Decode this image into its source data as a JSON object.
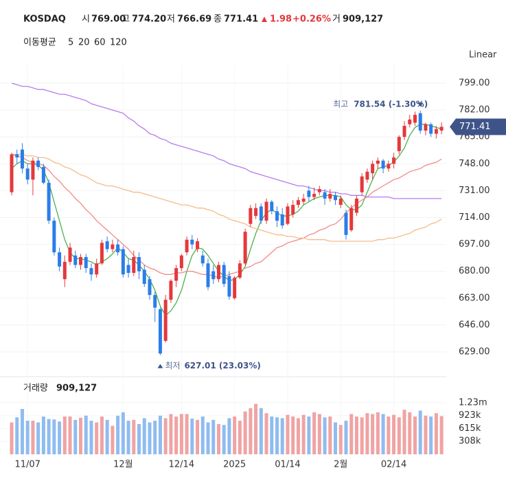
{
  "chart_data": {
    "type": "candlestick",
    "header": {
      "title": "KOSDAQ",
      "open_label": "시",
      "open": "769.00",
      "high_label": "고",
      "high": "774.20",
      "low_label": "저",
      "low": "766.69",
      "close_label": "종",
      "close": "771.41",
      "change": "1.98",
      "change_pct": "+0.26%",
      "volume_label": "거",
      "volume": "909,127"
    },
    "ma_title": "이동평균",
    "scale": "Linear",
    "categories": [
      null,
      null,
      null,
      "11/07",
      null,
      null,
      null,
      null,
      null,
      null,
      null,
      null,
      null,
      null,
      null,
      null,
      null,
      null,
      null,
      null,
      null,
      "12월",
      null,
      null,
      null,
      null,
      null,
      null,
      null,
      null,
      null,
      null,
      "12/14",
      null,
      null,
      null,
      null,
      null,
      null,
      null,
      null,
      null,
      "2025",
      null,
      null,
      null,
      null,
      null,
      null,
      null,
      null,
      null,
      "01/14",
      null,
      null,
      null,
      null,
      null,
      null,
      null,
      null,
      null,
      "2월",
      null,
      null,
      null,
      null,
      null,
      null,
      null,
      null,
      null,
      "02/14",
      null,
      null,
      null,
      null,
      null,
      null,
      null,
      null,
      null
    ],
    "open": [
      730,
      754,
      757,
      745,
      738,
      750,
      746,
      736,
      712,
      692,
      675,
      686,
      690,
      684,
      689,
      682,
      678,
      685,
      699,
      694,
      697,
      694,
      684,
      679,
      689,
      681,
      675,
      665,
      656,
      636,
      662,
      674,
      682,
      692,
      700,
      694,
      690,
      685,
      680,
      675,
      684,
      677,
      663,
      676,
      685,
      710,
      715,
      721,
      712,
      724,
      718,
      716,
      710,
      716,
      722,
      724,
      731,
      727,
      730,
      730,
      726,
      728,
      722,
      717,
      706,
      717,
      730,
      738,
      742,
      748,
      750,
      745,
      748,
      756,
      765,
      773,
      774,
      780,
      769,
      773,
      767,
      769
    ],
    "high": [
      755,
      757,
      761,
      748,
      752,
      752,
      748,
      738,
      714,
      695,
      690,
      698,
      693,
      691,
      691,
      685,
      688,
      700,
      702,
      700,
      700,
      696,
      688,
      693,
      692,
      684,
      677,
      667,
      657,
      665,
      675,
      684,
      691,
      702,
      703,
      701,
      693,
      688,
      684,
      686,
      686,
      680,
      677,
      687,
      707,
      722,
      723,
      723,
      726,
      725,
      721,
      720,
      723,
      725,
      727,
      729,
      734,
      733,
      734,
      732,
      732,
      730,
      728,
      719,
      722,
      728,
      742,
      745,
      750,
      752,
      751,
      750,
      755,
      766,
      775,
      779,
      781,
      781.54,
      774,
      774,
      772,
      774.2
    ],
    "low": [
      728,
      748,
      742,
      735,
      728,
      744,
      735,
      710,
      690,
      680,
      670,
      684,
      682,
      681,
      679,
      674,
      676,
      684,
      692,
      692,
      690,
      676,
      676,
      677,
      675,
      670,
      662,
      648,
      627.01,
      635,
      660,
      670,
      680,
      690,
      694,
      692,
      683,
      668,
      672,
      673,
      670,
      662,
      662,
      675,
      684,
      708,
      713,
      710,
      710,
      716,
      708,
      707,
      709,
      714,
      720,
      722,
      724,
      725,
      728,
      722,
      724,
      722,
      720,
      700,
      705,
      715,
      728,
      736,
      738,
      745,
      742,
      743,
      745,
      754,
      763,
      771,
      772,
      767,
      766,
      765,
      764,
      766.69
    ],
    "close": [
      754,
      752,
      745,
      738,
      750,
      746,
      736,
      712,
      692,
      683,
      686,
      695,
      684,
      689,
      682,
      678,
      685,
      698,
      694,
      697,
      692,
      678,
      679,
      689,
      680,
      672,
      665,
      657,
      628,
      662,
      674,
      682,
      690,
      700,
      697,
      699,
      685,
      670,
      675,
      684,
      672,
      664,
      676,
      685,
      705,
      720,
      720,
      712,
      724,
      718,
      712,
      709,
      721,
      722,
      725,
      726,
      727,
      729,
      732,
      726,
      729,
      725,
      726,
      703,
      720,
      726,
      740,
      743,
      748,
      750,
      745,
      748,
      752,
      765,
      772,
      776,
      779,
      769,
      773,
      767,
      770,
      771.41
    ],
    "colors": {
      "up": "#e5383b",
      "down": "#2b7de9",
      "up_volume": "#f0a3a3",
      "down_volume": "#8fbcf0"
    },
    "ylim": [
      618,
      810
    ],
    "yticks": [
      {
        "value": 799,
        "label": "799.00"
      },
      {
        "value": 782,
        "label": "782.00"
      },
      {
        "value": 765,
        "label": "765.00"
      },
      {
        "value": 748,
        "label": "748.00"
      },
      {
        "value": 731,
        "label": "731.00"
      },
      {
        "value": 714,
        "label": "714.00"
      },
      {
        "value": 697,
        "label": "697.00"
      },
      {
        "value": 680,
        "label": "680.00"
      },
      {
        "value": 663,
        "label": "663.00"
      },
      {
        "value": 646,
        "label": "646.00"
      },
      {
        "value": 629,
        "label": "629.00"
      }
    ],
    "ma": [
      {
        "name": "5",
        "color": "#4caf50",
        "values": [
          745,
          748,
          750,
          748,
          748,
          747,
          744,
          736,
          724,
          712,
          700,
          692,
          688,
          688,
          687,
          686,
          684,
          686,
          688,
          691,
          695,
          692,
          688,
          687,
          684,
          680,
          675,
          668,
          658,
          652,
          655,
          660,
          668,
          680,
          690,
          695,
          694,
          690,
          685,
          680,
          677,
          674,
          675,
          678,
          683,
          694,
          704,
          712,
          717,
          719,
          717,
          715,
          715,
          716,
          718,
          722,
          724,
          726,
          727,
          728,
          728,
          728,
          727,
          722,
          719,
          719,
          722,
          730,
          738,
          745,
          746,
          747,
          749,
          753,
          758,
          766,
          771,
          773,
          773,
          772,
          771,
          770
        ]
      },
      {
        "name": "20",
        "color": "#f08a8a",
        "values": [
          754,
          753,
          752,
          750,
          749,
          748,
          747,
          744,
          740,
          737,
          733,
          730,
          726,
          723,
          719,
          716,
          712,
          709,
          706,
          703,
          700,
          697,
          694,
          690,
          687,
          684,
          682,
          681,
          679,
          678,
          678,
          679,
          679,
          680,
          680,
          679,
          678,
          678,
          677,
          676,
          677,
          678,
          679,
          680,
          682,
          683,
          685,
          686,
          689,
          692,
          695,
          696,
          698,
          699,
          700,
          701,
          703,
          704,
          706,
          707,
          709,
          710,
          713,
          717,
          720,
          723,
          725,
          727,
          730,
          732,
          734,
          736,
          738,
          739,
          741,
          743,
          744,
          745,
          747,
          748,
          749,
          751
        ]
      },
      {
        "name": "60",
        "color": "#f5bb88",
        "values": [
          754,
          754,
          754,
          753,
          753,
          752,
          752,
          751,
          749,
          748,
          746,
          745,
          743,
          741,
          740,
          738,
          736,
          735,
          734,
          734,
          733,
          732,
          731,
          730,
          730,
          729,
          728,
          727,
          726,
          725,
          724,
          723,
          722,
          722,
          721,
          720,
          720,
          719,
          718,
          716,
          715,
          713,
          712,
          711,
          710,
          708,
          707,
          706,
          705,
          704,
          703,
          703,
          702,
          702,
          701,
          701,
          700,
          700,
          700,
          700,
          699,
          699,
          699,
          699,
          699,
          699,
          699,
          699,
          699,
          700,
          700,
          701,
          701,
          702,
          703,
          704,
          706,
          707,
          708,
          710,
          711,
          713
        ]
      },
      {
        "name": "120",
        "color": "#b57bee",
        "values": [
          799,
          798,
          797,
          797,
          796,
          795,
          795,
          794,
          793,
          792,
          792,
          791,
          790,
          789,
          788,
          786,
          785,
          784,
          783,
          782,
          781,
          780,
          777,
          775,
          772,
          770,
          767,
          766,
          764,
          763,
          761,
          760,
          759,
          758,
          757,
          756,
          755,
          754,
          753,
          751,
          750,
          748,
          747,
          746,
          745,
          743,
          742,
          741,
          740,
          739,
          738,
          737,
          736,
          735,
          734,
          734,
          733,
          732,
          731,
          731,
          730,
          730,
          729,
          729,
          728,
          728,
          728,
          727,
          727,
          727,
          727,
          727,
          726,
          726,
          726,
          726,
          726,
          726,
          726,
          726,
          726,
          726
        ]
      }
    ],
    "annotations": {
      "high_label": "최고",
      "high_text": "781.54 (-1.30%)",
      "low_label": "최저",
      "low_text": "627.01 (23.03%)"
    },
    "volume": {
      "title": "거래량",
      "ylim": [
        0,
        1800000
      ],
      "yticks": [
        {
          "value": 308000,
          "label": "308k"
        },
        {
          "value": 615000,
          "label": "615k"
        },
        {
          "value": 923000,
          "label": "923k"
        },
        {
          "value": 1230000,
          "label": "1.23m"
        }
      ],
      "values": [
        760000,
        880000,
        1080000,
        800000,
        800000,
        760000,
        900000,
        840000,
        830000,
        780000,
        900000,
        900000,
        820000,
        870000,
        920000,
        800000,
        760000,
        900000,
        820000,
        680000,
        920000,
        1000000,
        800000,
        820000,
        720000,
        860000,
        760000,
        800000,
        920000,
        860000,
        960000,
        900000,
        960000,
        960000,
        850000,
        820000,
        900000,
        760000,
        820000,
        720000,
        700000,
        860000,
        900000,
        800000,
        1020000,
        1100000,
        1200000,
        1100000,
        980000,
        900000,
        880000,
        860000,
        940000,
        900000,
        860000,
        940000,
        900000,
        1000000,
        960000,
        880000,
        900000,
        760000,
        700000,
        800000,
        960000,
        900000,
        880000,
        980000,
        960000,
        1000000,
        960000,
        900000,
        940000,
        880000,
        1060000,
        1000000,
        900000,
        1040000,
        920000,
        900000,
        980000,
        909127
      ]
    }
  }
}
